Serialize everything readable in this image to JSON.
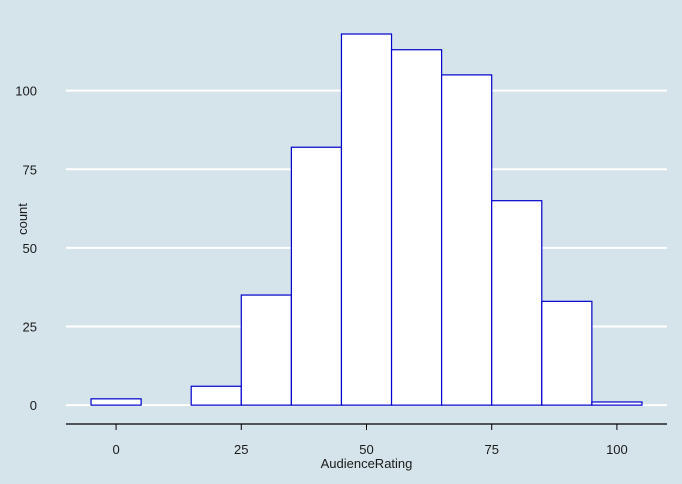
{
  "chart_data": {
    "type": "histogram",
    "title": "",
    "xlabel": "AudienceRating",
    "ylabel": "count",
    "bin_width": 10,
    "bin_centers": [
      0,
      10,
      20,
      30,
      40,
      50,
      60,
      70,
      80,
      90,
      100
    ],
    "counts": [
      2,
      0,
      6,
      35,
      82,
      118,
      113,
      105,
      65,
      33,
      1
    ],
    "xlim": [
      -10,
      110
    ],
    "ylim": [
      -6,
      125
    ],
    "x_ticks": [
      0,
      25,
      50,
      75,
      100
    ],
    "y_ticks": [
      0,
      25,
      50,
      75,
      100
    ],
    "grid": "horizontal",
    "legend": "none",
    "colors": {
      "background": "#d5e4eb",
      "bar_fill": "#ffffff",
      "bar_stroke": "#0000cc",
      "gridline": "#ffffff",
      "axis_line": "#000000",
      "text": "#1a1a1a"
    }
  }
}
